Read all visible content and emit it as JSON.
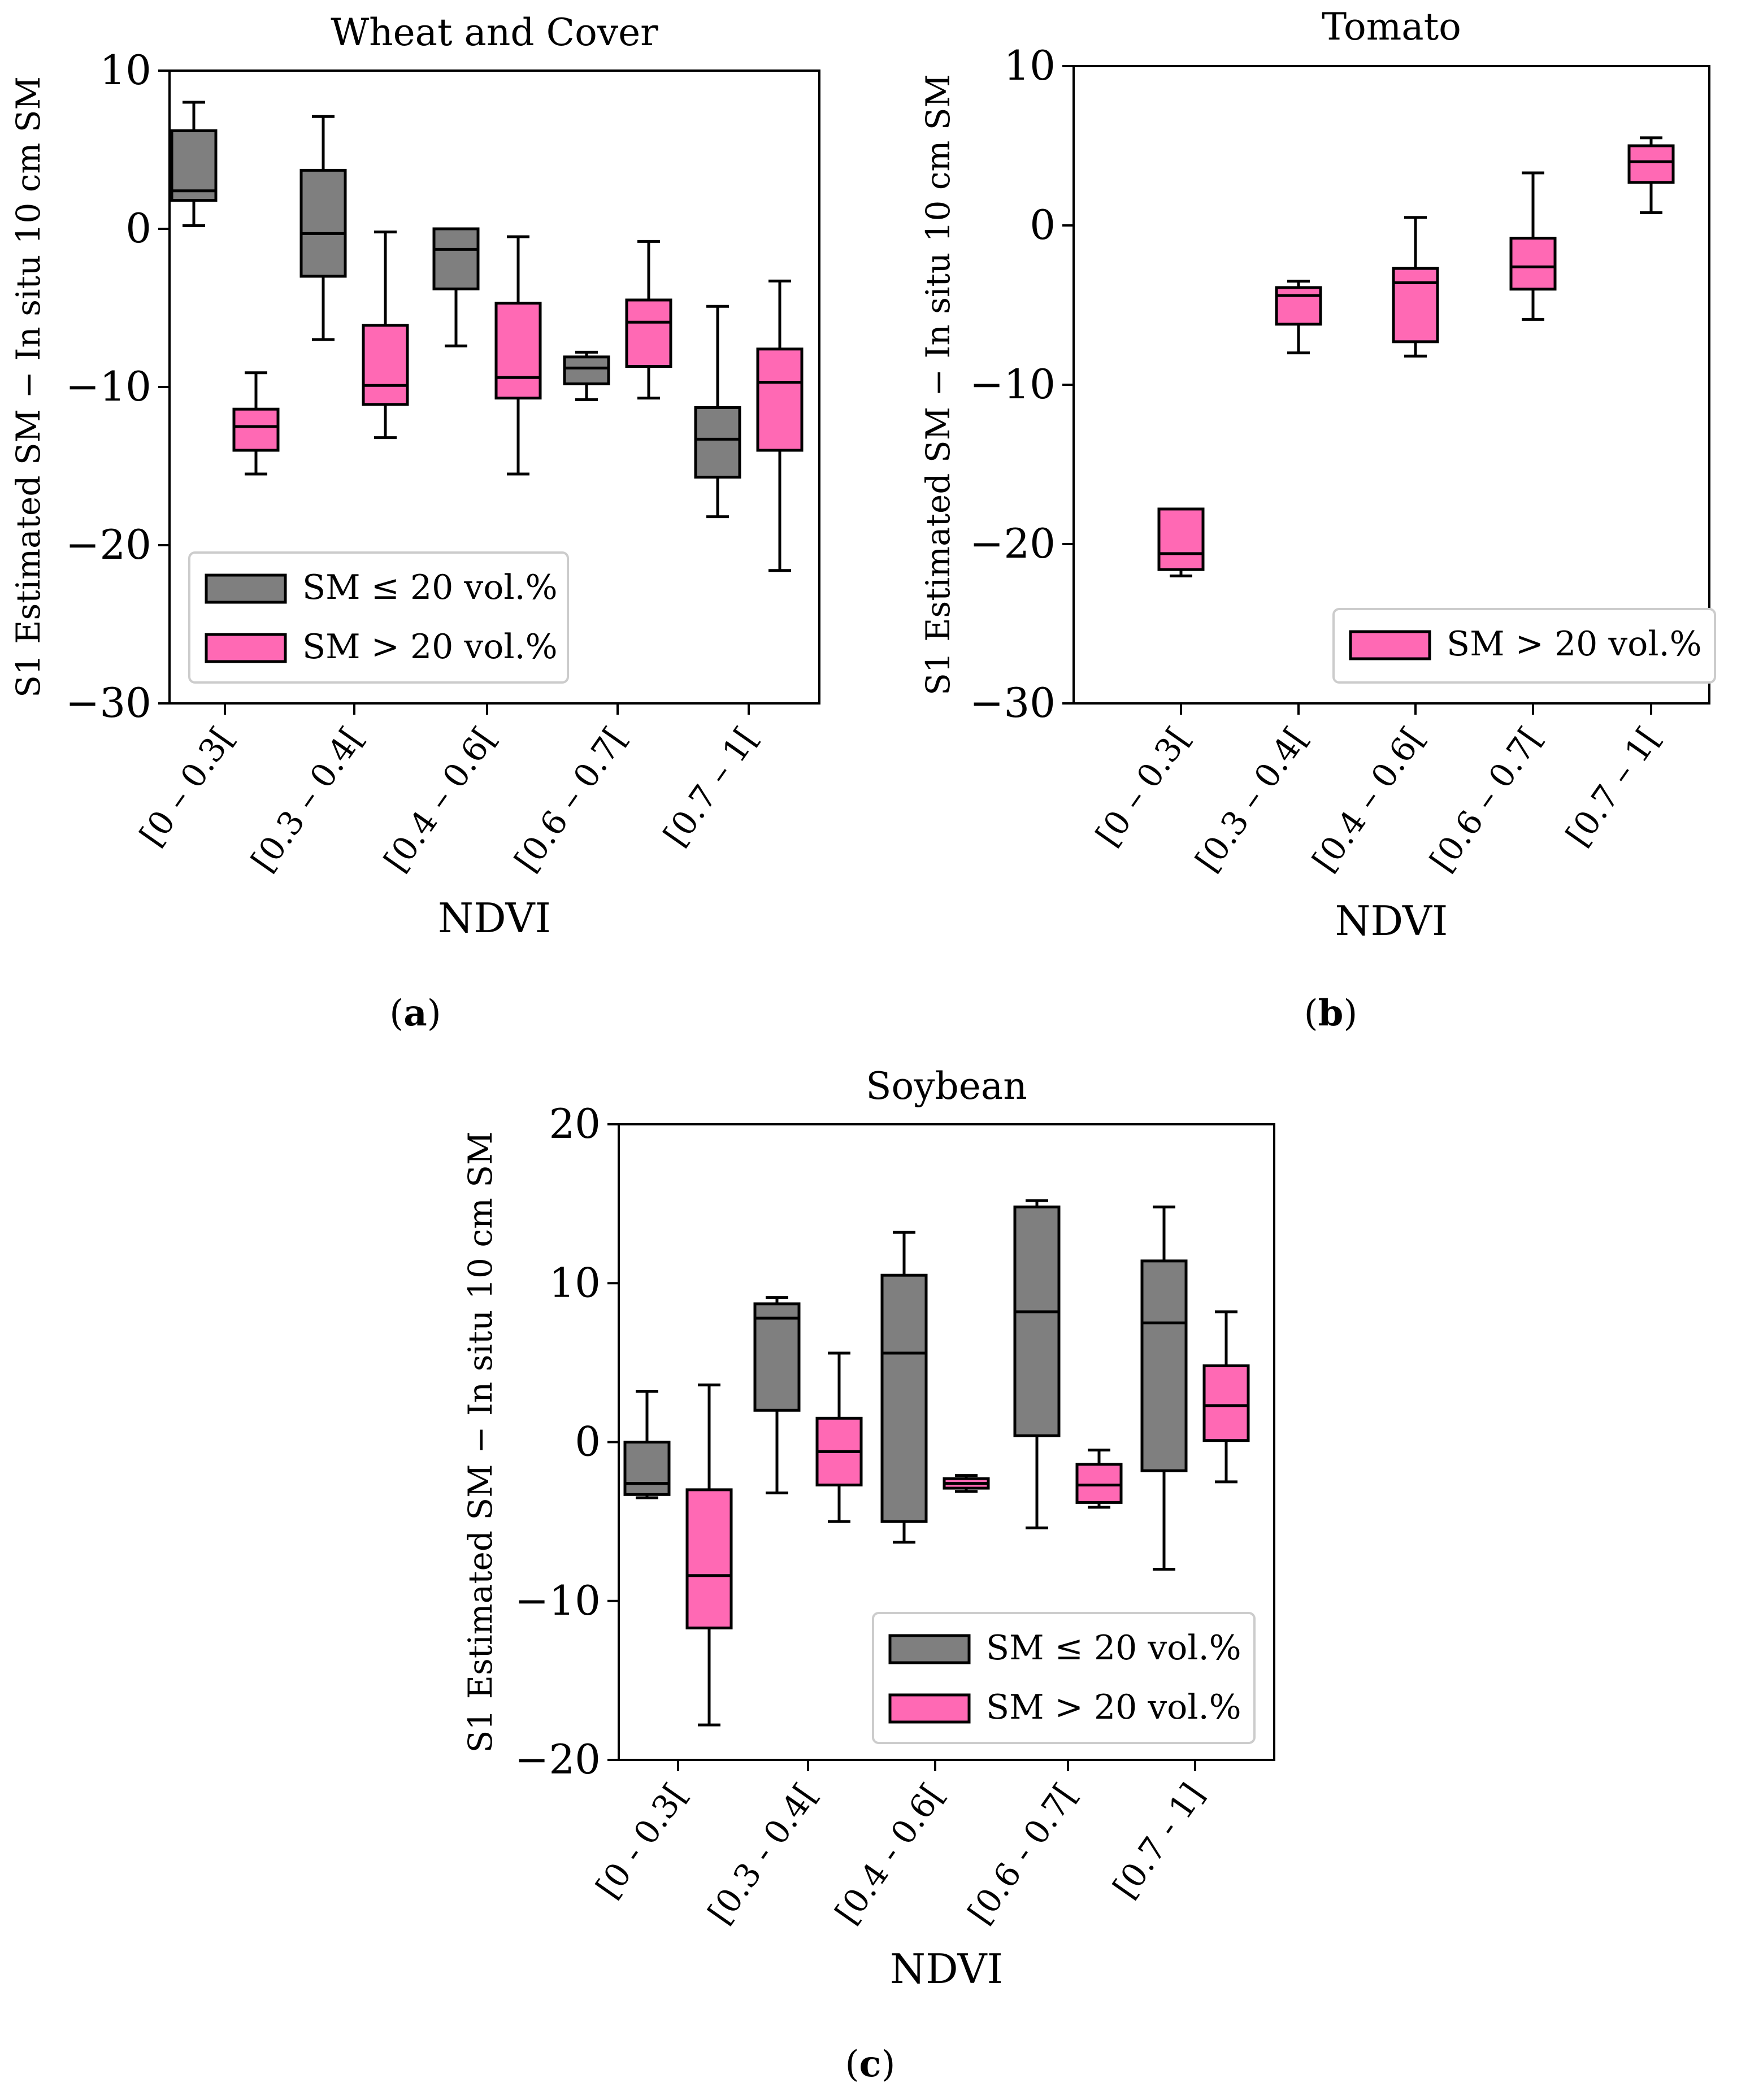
{
  "colors": {
    "low_sm": "#7f7f7f",
    "high_sm": "#ff69b4",
    "stroke": "#000000"
  },
  "chart_data": [
    {
      "id": "a",
      "type": "boxplot",
      "title": "Wheat and Cover",
      "xlabel": "NDVI",
      "ylabel": "S1 Estimated SM − In situ 10 cm SM",
      "caption_letter": "a",
      "ylim": [
        -30,
        10
      ],
      "yticks": [
        10,
        0,
        -10,
        -20,
        -30
      ],
      "ytick_labels": [
        "10",
        "0",
        "−10",
        "−20",
        "−30"
      ],
      "categories": [
        "[0 – 0.3[",
        "[0.3 – 0.4[",
        "[0.4 – 0.6[",
        "[0.6 – 0.7[",
        "[0.7 – 1["
      ],
      "legend": {
        "position": "lower-left",
        "entries": [
          {
            "series": "low",
            "label": "SM ≤ 20 vol.%"
          },
          {
            "series": "high",
            "label": "SM > 20 vol.%"
          }
        ]
      },
      "series": [
        {
          "key": "low",
          "name": "SM ≤ 20 vol.%",
          "boxes": [
            {
              "category": 0,
              "whislo": 0.2,
              "q1": 1.8,
              "med": 2.4,
              "q3": 6.2,
              "whishi": 8.0
            },
            {
              "category": 1,
              "whislo": -7.0,
              "q1": -3.0,
              "med": -0.3,
              "q3": 3.7,
              "whishi": 7.1
            },
            {
              "category": 2,
              "whislo": -7.4,
              "q1": -3.8,
              "med": -1.3,
              "q3": 0.0,
              "whishi": 0.0
            },
            {
              "category": 3,
              "whislo": -10.8,
              "q1": -9.8,
              "med": -8.8,
              "q3": -8.1,
              "whishi": -7.8
            },
            {
              "category": 4,
              "whislo": -18.2,
              "q1": -15.7,
              "med": -13.3,
              "q3": -11.3,
              "whishi": -4.9
            }
          ]
        },
        {
          "key": "high",
          "name": "SM > 20 vol.%",
          "boxes": [
            {
              "category": 0,
              "whislo": -15.5,
              "q1": -14.0,
              "med": -12.5,
              "q3": -11.4,
              "whishi": -9.1
            },
            {
              "category": 1,
              "whislo": -13.2,
              "q1": -11.1,
              "med": -9.9,
              "q3": -6.1,
              "whishi": -0.2
            },
            {
              "category": 2,
              "whislo": -15.5,
              "q1": -10.7,
              "med": -9.4,
              "q3": -4.7,
              "whishi": -0.5
            },
            {
              "category": 3,
              "whislo": -10.7,
              "q1": -8.7,
              "med": -5.9,
              "q3": -4.5,
              "whishi": -0.8
            },
            {
              "category": 4,
              "whislo": -21.6,
              "q1": -14.0,
              "med": -9.7,
              "q3": -7.6,
              "whishi": -3.3
            }
          ]
        }
      ]
    },
    {
      "id": "b",
      "type": "boxplot",
      "title": "Tomato",
      "xlabel": "NDVI",
      "ylabel": "S1 Estimated SM − In situ 10 cm SM",
      "caption_letter": "b",
      "ylim": [
        -30,
        10
      ],
      "yticks": [
        10,
        0,
        -10,
        -20,
        -30
      ],
      "ytick_labels": [
        "10",
        "0",
        "−10",
        "−20",
        "−30"
      ],
      "categories": [
        "[0 – 0.3[",
        "[0.3 – 0.4[",
        "[0.4 – 0.6[",
        "[0.6 – 0.7[",
        "[0.7 – 1["
      ],
      "legend": {
        "position": "lower-right",
        "entries": [
          {
            "series": "high",
            "label": "SM > 20 vol.%"
          }
        ]
      },
      "series": [
        {
          "key": "high",
          "name": "SM > 20 vol.%",
          "boxes": [
            {
              "category": 0,
              "whislo": -22.0,
              "q1": -21.6,
              "med": -20.6,
              "q3": -17.8,
              "whishi": -17.8
            },
            {
              "category": 1,
              "whislo": -8.0,
              "q1": -6.2,
              "med": -4.4,
              "q3": -3.9,
              "whishi": -3.5
            },
            {
              "category": 2,
              "whislo": -8.2,
              "q1": -7.3,
              "med": -3.6,
              "q3": -2.7,
              "whishi": 0.5
            },
            {
              "category": 3,
              "whislo": -5.9,
              "q1": -4.0,
              "med": -2.6,
              "q3": -0.8,
              "whishi": 3.3
            },
            {
              "category": 4,
              "whislo": 0.8,
              "q1": 2.7,
              "med": 4.0,
              "q3": 5.0,
              "whishi": 5.5
            }
          ]
        }
      ]
    },
    {
      "id": "c",
      "type": "boxplot",
      "title": "Soybean",
      "xlabel": "NDVI",
      "ylabel": "S1 Estimated SM − In situ 10 cm SM",
      "caption_letter": "c",
      "ylim": [
        -20,
        20
      ],
      "yticks": [
        20,
        10,
        0,
        -10,
        -20
      ],
      "ytick_labels": [
        "20",
        "10",
        "0",
        "−10",
        "−20"
      ],
      "categories": [
        "[0 - 0.3[",
        "[0.3 - 0.4[",
        "[0.4 - 0.6[",
        "[0.6 - 0.7[",
        "[0.7 - 1]"
      ],
      "legend": {
        "position": "lower-right",
        "entries": [
          {
            "series": "low",
            "label": "SM ≤ 20 vol.%"
          },
          {
            "series": "high",
            "label": "SM > 20 vol.%"
          }
        ]
      },
      "series": [
        {
          "key": "low",
          "name": "SM ≤ 20 vol.%",
          "boxes": [
            {
              "category": 0,
              "whislo": -3.5,
              "q1": -3.3,
              "med": -2.6,
              "q3": 0.0,
              "whishi": 3.2
            },
            {
              "category": 1,
              "whislo": -3.2,
              "q1": 2.0,
              "med": 7.8,
              "q3": 8.7,
              "whishi": 9.1
            },
            {
              "category": 2,
              "whislo": -6.3,
              "q1": -5.0,
              "med": 5.6,
              "q3": 10.5,
              "whishi": 13.2
            },
            {
              "category": 3,
              "whislo": -5.4,
              "q1": 0.4,
              "med": 8.2,
              "q3": 14.8,
              "whishi": 15.2
            },
            {
              "category": 4,
              "whislo": -8.0,
              "q1": -1.8,
              "med": 7.5,
              "q3": 11.4,
              "whishi": 14.8
            }
          ]
        },
        {
          "key": "high",
          "name": "SM > 20 vol.%",
          "boxes": [
            {
              "category": 0,
              "whislo": -17.8,
              "q1": -11.7,
              "med": -8.4,
              "q3": -3.0,
              "whishi": 3.6
            },
            {
              "category": 1,
              "whislo": -5.0,
              "q1": -2.7,
              "med": -0.6,
              "q3": 1.5,
              "whishi": 5.6
            },
            {
              "category": 2,
              "whislo": -3.1,
              "q1": -2.9,
              "med": -2.6,
              "q3": -2.3,
              "whishi": -2.1
            },
            {
              "category": 3,
              "whislo": -4.1,
              "q1": -3.8,
              "med": -2.7,
              "q3": -1.4,
              "whishi": -0.5
            },
            {
              "category": 4,
              "whislo": -2.5,
              "q1": 0.1,
              "med": 2.3,
              "q3": 4.8,
              "whishi": 8.2
            }
          ]
        }
      ]
    }
  ]
}
